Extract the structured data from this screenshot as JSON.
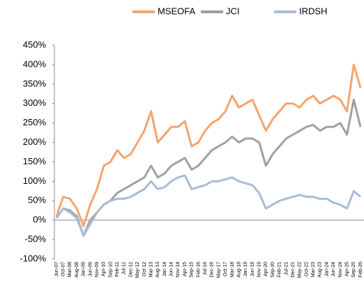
{
  "chart_data": {
    "type": "line",
    "categories": [
      "Jun-07",
      "Oct-07",
      "Mar-08",
      "Aug-08",
      "Jan-09",
      "Jun-09",
      "Nov-09",
      "Apr-10",
      "Sep-10",
      "Feb-11",
      "Jul-11",
      "Dec-11",
      "May-12",
      "Oct-12",
      "Mar-13",
      "Aug-13",
      "Jan-14",
      "Jun-14",
      "Nov-14",
      "Apr-15",
      "Sep-15",
      "Feb-16",
      "Jul-16",
      "Dec-16",
      "May-17",
      "Oct-17",
      "Mar-18",
      "Aug-18",
      "Jan-19",
      "Jun-19",
      "Nov-19",
      "Apr-20",
      "Sep-20",
      "Feb-21",
      "Jul-21",
      "Dec-21",
      "May-22",
      "Oct-22",
      "Mar-23",
      "Aug-23",
      "Jan-24",
      "Jun-24",
      "Nov-24",
      "Apr-25",
      "Sep-25",
      "Feb-26"
    ],
    "series": [
      {
        "name": "MSEOFA",
        "color": "#f4a46c",
        "values": [
          10,
          60,
          55,
          30,
          -15,
          40,
          80,
          140,
          150,
          180,
          160,
          170,
          200,
          230,
          280,
          200,
          220,
          240,
          240,
          255,
          190,
          200,
          230,
          250,
          260,
          280,
          320,
          290,
          300,
          310,
          270,
          230,
          260,
          280,
          300,
          300,
          290,
          310,
          320,
          300,
          310,
          320,
          310,
          280,
          400,
          340
        ]
      },
      {
        "name": "JCI",
        "color": "#a0a0a0",
        "values": [
          5,
          30,
          25,
          10,
          -40,
          0,
          20,
          40,
          50,
          70,
          80,
          90,
          100,
          110,
          140,
          110,
          120,
          140,
          150,
          160,
          130,
          140,
          160,
          180,
          190,
          200,
          215,
          200,
          210,
          210,
          200,
          140,
          170,
          190,
          210,
          220,
          230,
          240,
          245,
          230,
          240,
          240,
          250,
          220,
          310,
          240
        ]
      },
      {
        "name": "IRDSH",
        "color": "#a9bcd6",
        "values": [
          5,
          30,
          20,
          5,
          -40,
          -10,
          20,
          40,
          50,
          55,
          55,
          60,
          70,
          80,
          100,
          80,
          85,
          100,
          110,
          115,
          80,
          85,
          90,
          100,
          100,
          105,
          110,
          100,
          95,
          90,
          70,
          30,
          40,
          50,
          55,
          60,
          65,
          60,
          60,
          55,
          55,
          45,
          40,
          30,
          75,
          60
        ]
      }
    ],
    "ylim": [
      -100,
      450
    ],
    "yticks": [
      {
        "value": -100,
        "label": "-100%"
      },
      {
        "value": -50,
        "label": "-50%"
      },
      {
        "value": 0,
        "label": "0%"
      },
      {
        "value": 50,
        "label": "50%"
      },
      {
        "value": 100,
        "label": "100%"
      },
      {
        "value": 150,
        "label": "150%"
      },
      {
        "value": 200,
        "label": "200%"
      },
      {
        "value": 250,
        "label": "250%"
      },
      {
        "value": 300,
        "label": "300%"
      },
      {
        "value": 350,
        "label": "350%"
      },
      {
        "value": 400,
        "label": "400%"
      },
      {
        "value": 450,
        "label": "450%"
      }
    ],
    "legend": "top"
  }
}
